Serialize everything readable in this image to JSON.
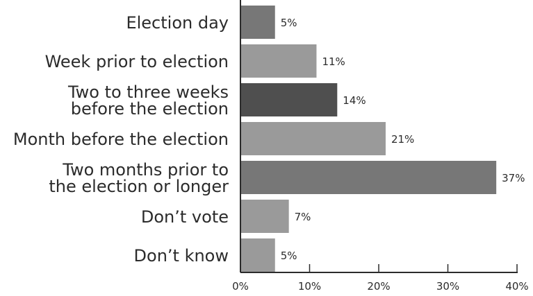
{
  "chart_data": {
    "type": "bar",
    "orientation": "horizontal",
    "categories": [
      [
        "Election day"
      ],
      [
        "Week prior to election"
      ],
      [
        "Two to three weeks",
        "before the election"
      ],
      [
        "Month before the election"
      ],
      [
        "Two months prior to",
        "the election or longer"
      ],
      [
        "Don’t vote"
      ],
      [
        "Don’t know"
      ]
    ],
    "values": [
      5,
      11,
      14,
      21,
      37,
      7,
      5
    ],
    "value_labels": [
      "5%",
      "11%",
      "14%",
      "21%",
      "37%",
      "7%",
      "5%"
    ],
    "bar_colors": [
      "#777777",
      "#9a9a9a",
      "#4f4f4f",
      "#9a9a9a",
      "#777777",
      "#9a9a9a",
      "#9a9a9a"
    ],
    "xlim": [
      0,
      40
    ],
    "xticks": [
      0,
      10,
      20,
      30,
      40
    ],
    "xtick_labels": [
      "0%",
      "10%",
      "20%",
      "30%",
      "40%"
    ],
    "grid": false,
    "title": "",
    "xlabel": "",
    "ylabel": ""
  }
}
